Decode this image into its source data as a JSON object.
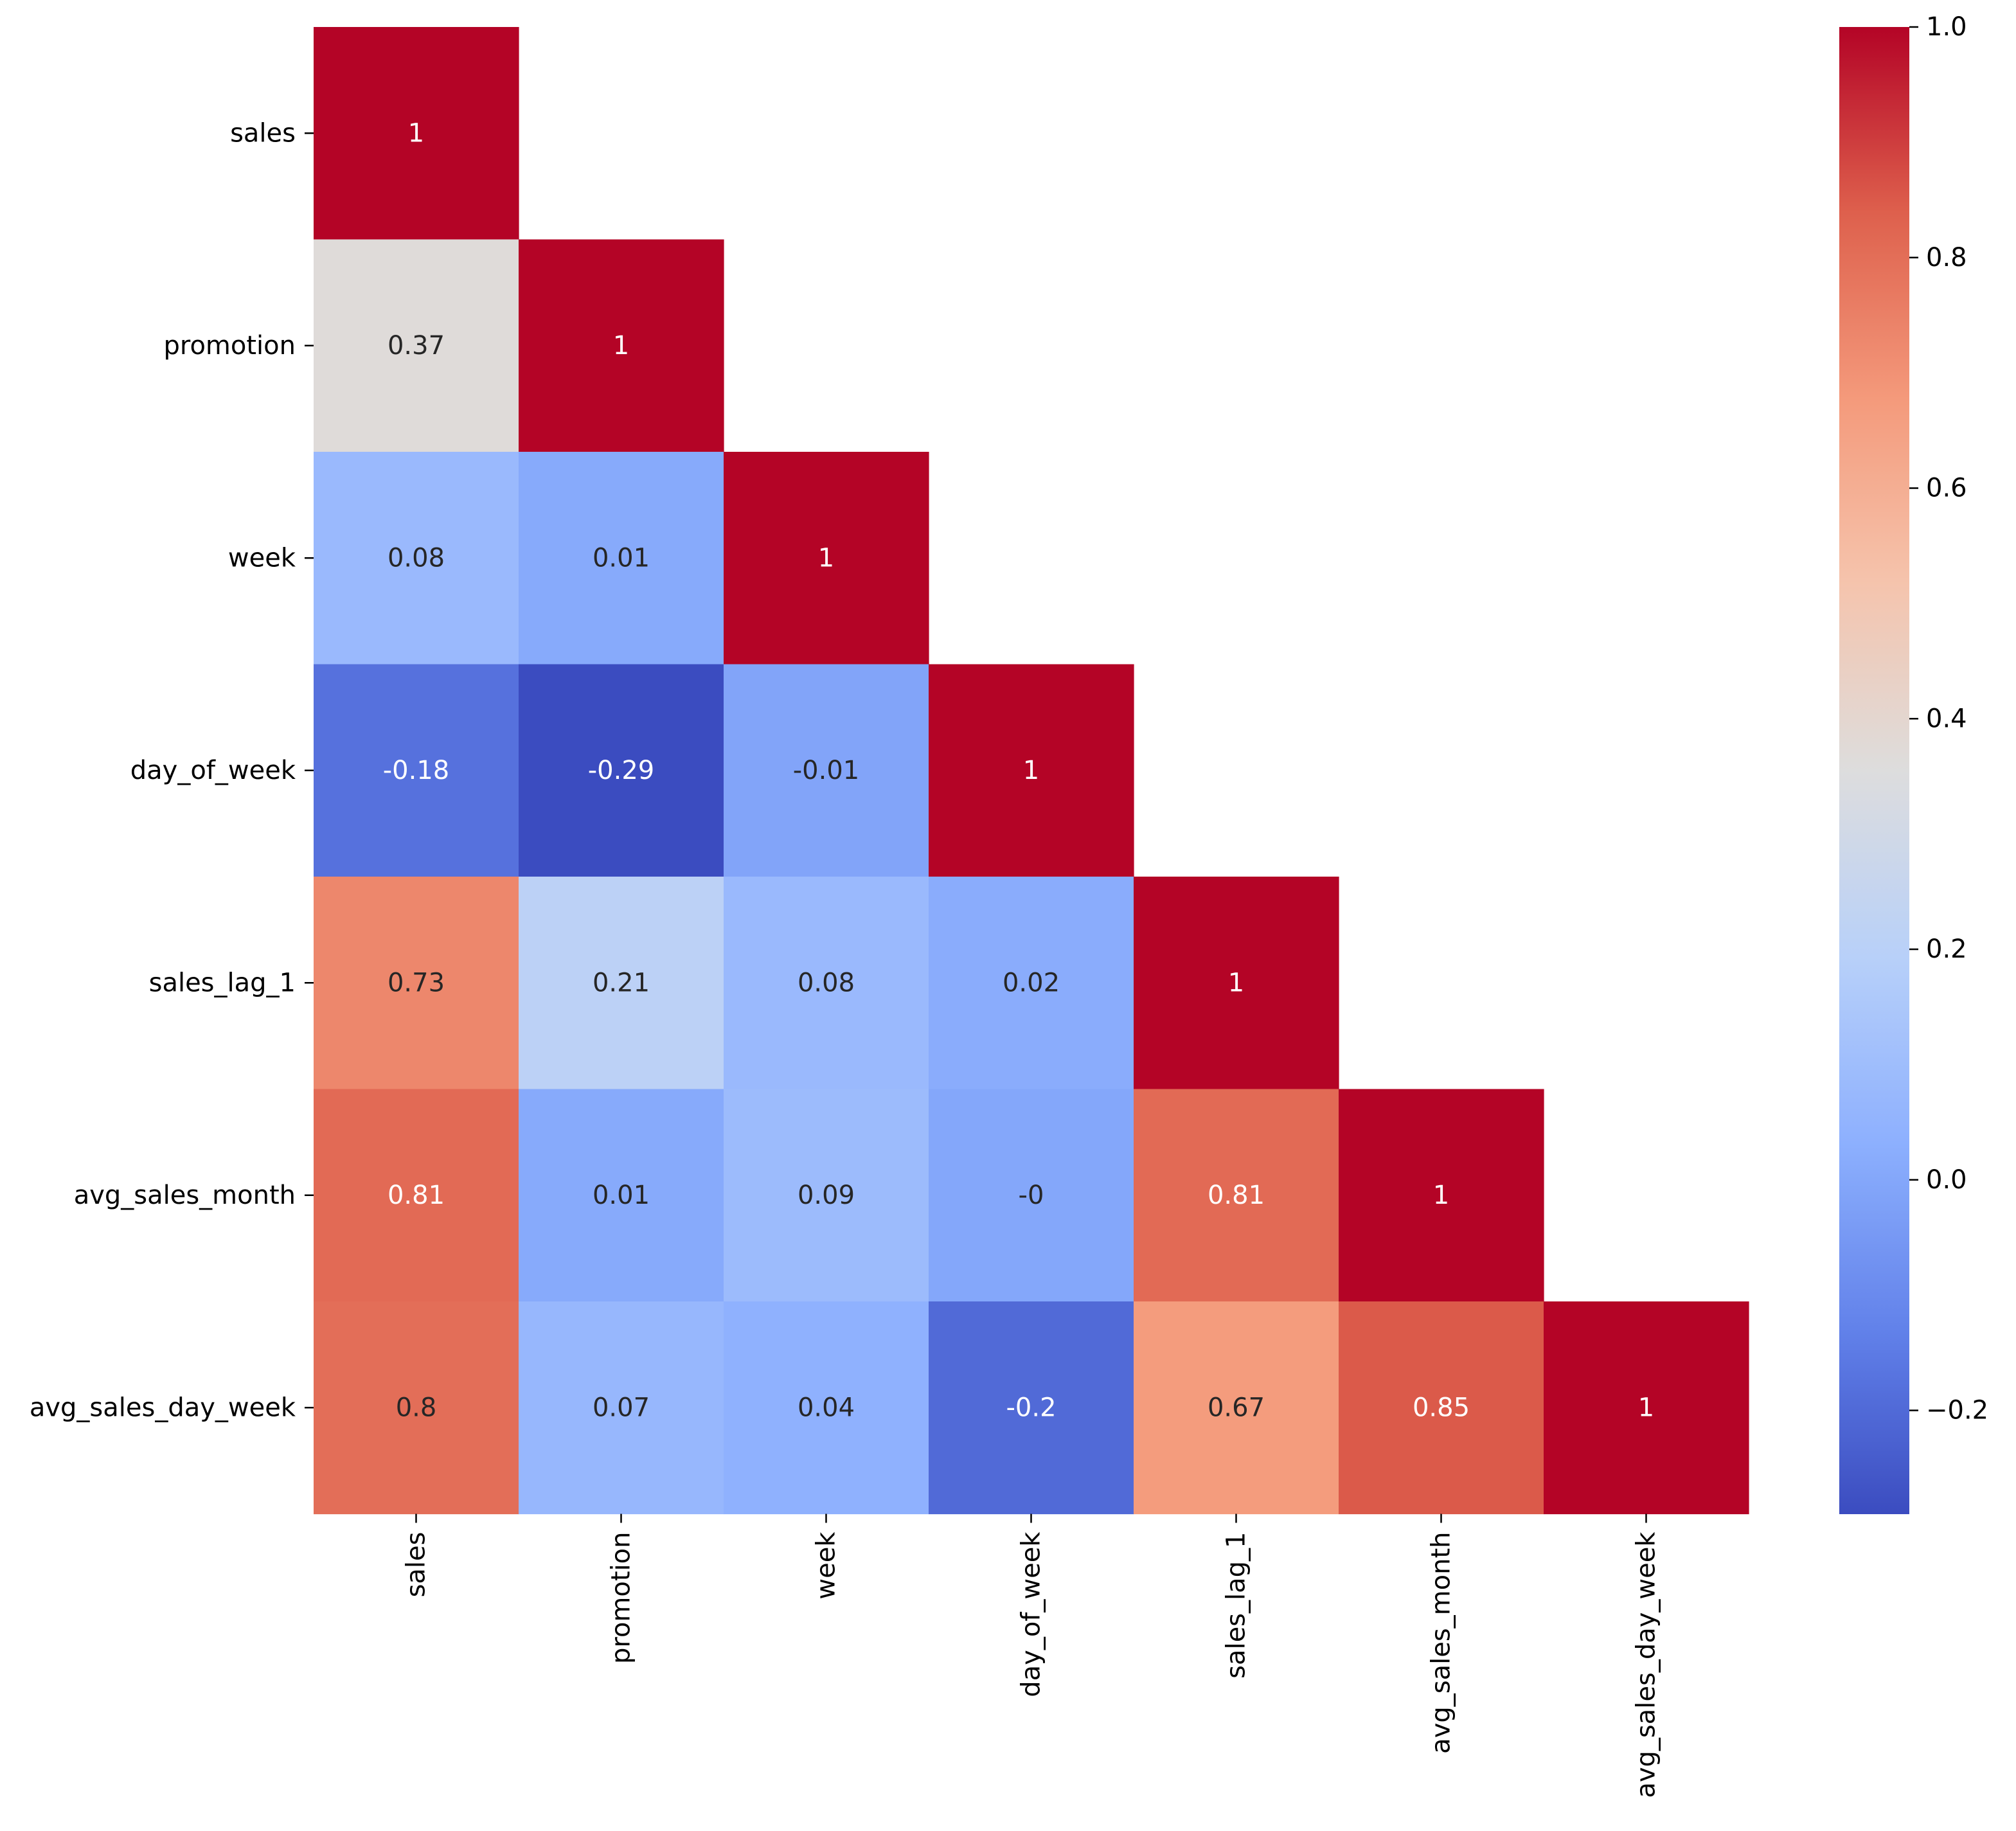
{
  "chart_data": {
    "type": "heatmap",
    "title": "",
    "xlabel": "",
    "ylabel": "",
    "variables": [
      "sales",
      "promotion",
      "week",
      "day_of_week",
      "sales_lag_1",
      "avg_sales_month",
      "avg_sales_day_week"
    ],
    "mask": "upper-triangle",
    "cells": [
      {
        "row": 0,
        "col": 0,
        "value": 1,
        "label": "1"
      },
      {
        "row": 1,
        "col": 0,
        "value": 0.37,
        "label": "0.37"
      },
      {
        "row": 1,
        "col": 1,
        "value": 1,
        "label": "1"
      },
      {
        "row": 2,
        "col": 0,
        "value": 0.08,
        "label": "0.08"
      },
      {
        "row": 2,
        "col": 1,
        "value": 0.01,
        "label": "0.01"
      },
      {
        "row": 2,
        "col": 2,
        "value": 1,
        "label": "1"
      },
      {
        "row": 3,
        "col": 0,
        "value": -0.18,
        "label": "-0.18"
      },
      {
        "row": 3,
        "col": 1,
        "value": -0.29,
        "label": "-0.29"
      },
      {
        "row": 3,
        "col": 2,
        "value": -0.01,
        "label": "-0.01"
      },
      {
        "row": 3,
        "col": 3,
        "value": 1,
        "label": "1"
      },
      {
        "row": 4,
        "col": 0,
        "value": 0.73,
        "label": "0.73"
      },
      {
        "row": 4,
        "col": 1,
        "value": 0.21,
        "label": "0.21"
      },
      {
        "row": 4,
        "col": 2,
        "value": 0.08,
        "label": "0.08"
      },
      {
        "row": 4,
        "col": 3,
        "value": 0.02,
        "label": "0.02"
      },
      {
        "row": 4,
        "col": 4,
        "value": 1,
        "label": "1"
      },
      {
        "row": 5,
        "col": 0,
        "value": 0.81,
        "label": "0.81"
      },
      {
        "row": 5,
        "col": 1,
        "value": 0.01,
        "label": "0.01"
      },
      {
        "row": 5,
        "col": 2,
        "value": 0.09,
        "label": "0.09"
      },
      {
        "row": 5,
        "col": 3,
        "value": 0,
        "label": "-0"
      },
      {
        "row": 5,
        "col": 4,
        "value": 0.81,
        "label": "0.81"
      },
      {
        "row": 5,
        "col": 5,
        "value": 1,
        "label": "1"
      },
      {
        "row": 6,
        "col": 0,
        "value": 0.8,
        "label": "0.8"
      },
      {
        "row": 6,
        "col": 1,
        "value": 0.07,
        "label": "0.07"
      },
      {
        "row": 6,
        "col": 2,
        "value": 0.04,
        "label": "0.04"
      },
      {
        "row": 6,
        "col": 3,
        "value": -0.2,
        "label": "-0.2"
      },
      {
        "row": 6,
        "col": 4,
        "value": 0.67,
        "label": "0.67"
      },
      {
        "row": 6,
        "col": 5,
        "value": 0.85,
        "label": "0.85"
      },
      {
        "row": 6,
        "col": 6,
        "value": 1,
        "label": "1"
      }
    ],
    "colorbar": {
      "cmap": "coolwarm",
      "vmin": -0.29,
      "vmax": 1.0,
      "ticks": [
        -0.2,
        0.0,
        0.2,
        0.4,
        0.6,
        0.8,
        1.0
      ],
      "tick_labels": [
        "−0.2",
        "0.0",
        "0.2",
        "0.4",
        "0.6",
        "0.8",
        "1.0"
      ]
    },
    "grid": false,
    "legend": "colorbar-right"
  }
}
